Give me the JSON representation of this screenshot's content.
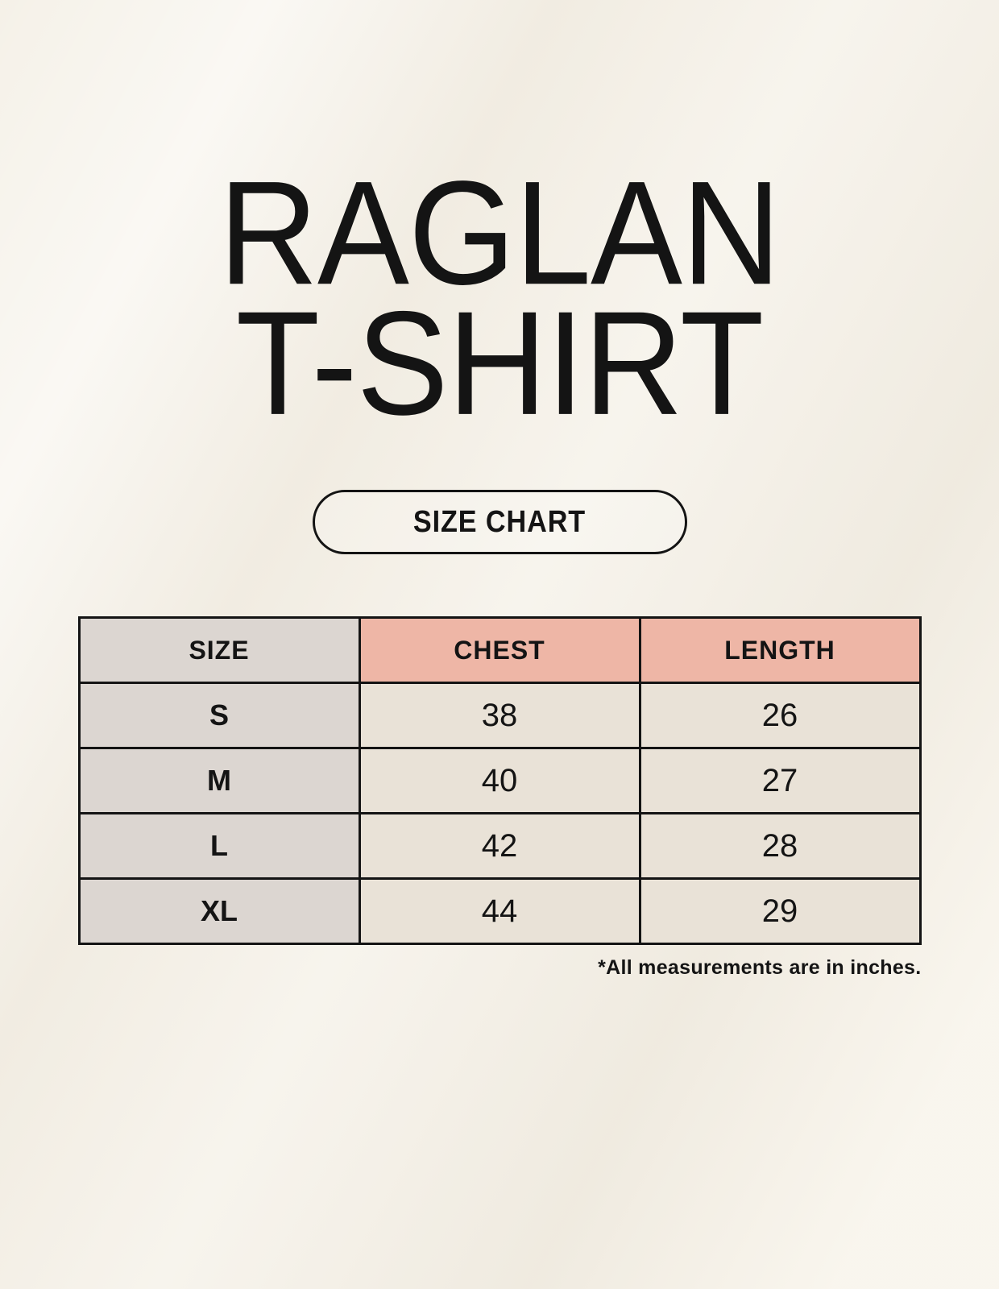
{
  "header": {
    "title_line1": "RAGLAN",
    "title_line2": "T-SHIRT",
    "button_label": "SIZE CHART"
  },
  "table": {
    "headers": [
      "SIZE",
      "CHEST",
      "LENGTH"
    ],
    "rows": [
      [
        "S",
        "38",
        "26"
      ],
      [
        "M",
        "40",
        "27"
      ],
      [
        "L",
        "42",
        "28"
      ],
      [
        "XL",
        "44",
        "29"
      ]
    ]
  },
  "footnote": "*All measurements are in inches.",
  "colors": {
    "background": "#f5f1e8",
    "accent_header": "#eeb6a6",
    "size_column": "#dcd6d1",
    "cell": "#e9e2d7",
    "border": "#141414",
    "text": "#141414"
  }
}
